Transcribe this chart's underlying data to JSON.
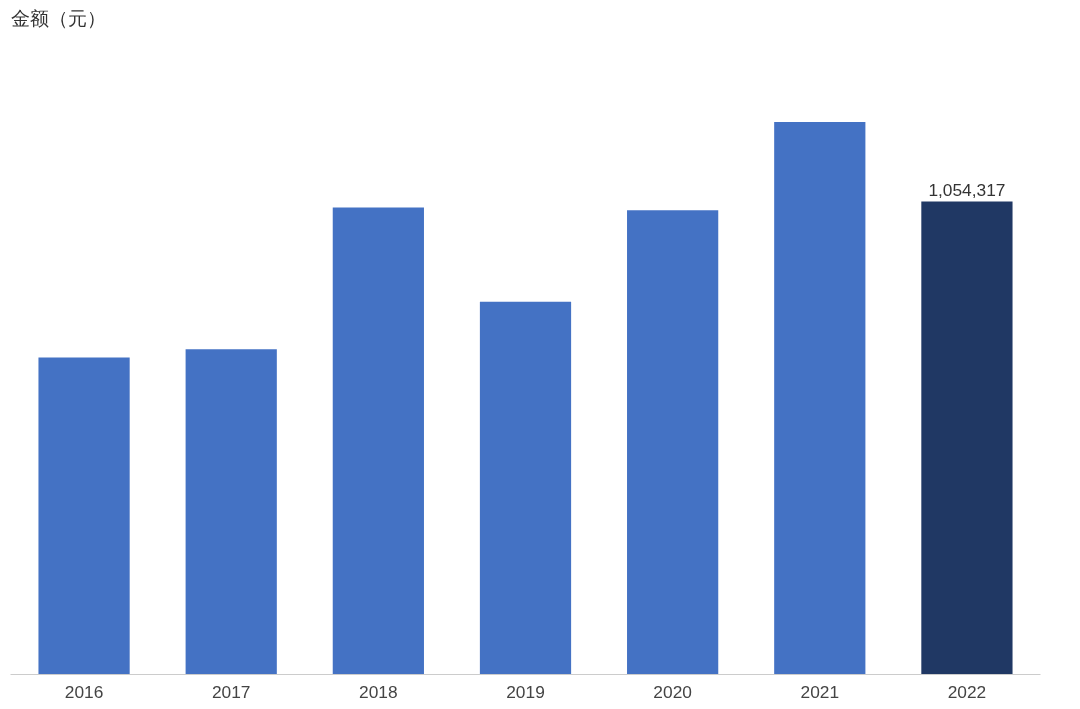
{
  "chart_data": {
    "type": "bar",
    "annotations": [
      "金额（元）"
    ],
    "categories": [
      "2016",
      "2017",
      "2018",
      "2019",
      "2020",
      "2021",
      "2022"
    ],
    "values": [
      707000,
      725000,
      1041000,
      831000,
      1035000,
      1232000,
      1054317
    ],
    "value_labels": [
      null,
      null,
      null,
      null,
      null,
      null,
      "1,054,317"
    ],
    "colors": [
      "#4472c4",
      "#4472c4",
      "#4472c4",
      "#4472c4",
      "#4472c4",
      "#4472c4",
      "#203864"
    ],
    "tick_labels": "x",
    "grid": false
  }
}
